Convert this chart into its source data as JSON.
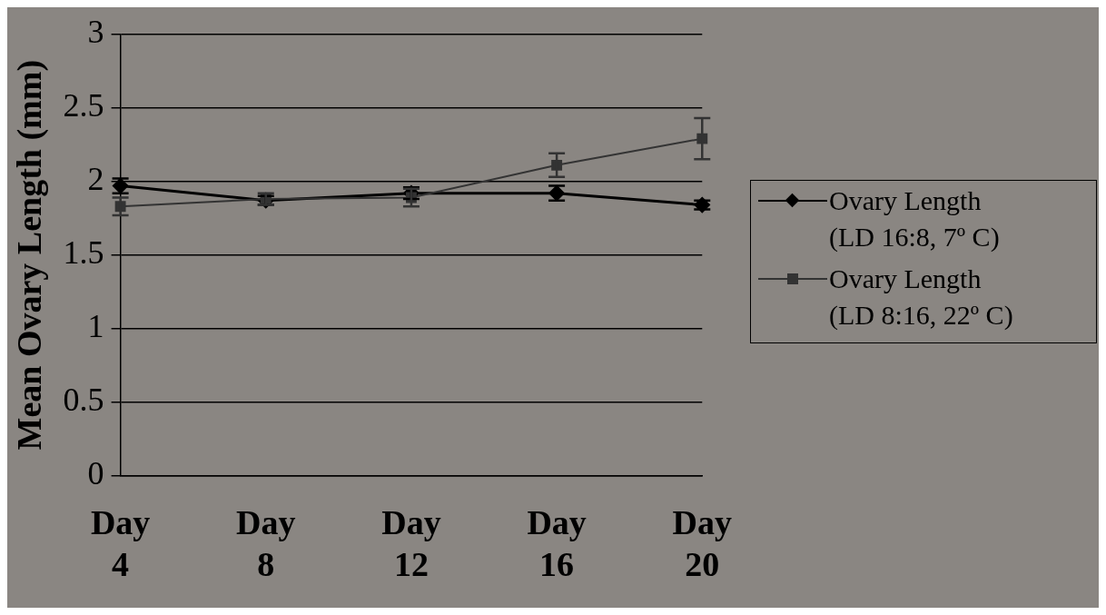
{
  "chart_data": {
    "type": "line",
    "ylabel": "Mean Ovary Length (mm)",
    "categories": [
      "Day 4",
      "Day 8",
      "Day 12",
      "Day 16",
      "Day 20"
    ],
    "series": [
      {
        "name": "Ovary Length (LD 16:8, 7º C)",
        "color": "#000000",
        "marker": "diamond",
        "values": [
          1.97,
          1.87,
          1.92,
          1.92,
          1.84
        ],
        "errors": [
          0.05,
          0.03,
          0.04,
          0.05,
          0.03
        ]
      },
      {
        "name": "Ovary Length (LD 8:16, 22º C)",
        "color": "#333333",
        "marker": "square",
        "values": [
          1.83,
          1.88,
          1.89,
          2.11,
          2.29
        ],
        "errors": [
          0.06,
          0.04,
          0.06,
          0.08,
          0.14
        ]
      }
    ],
    "ylim": [
      0,
      3
    ],
    "yticks": [
      0,
      0.5,
      1,
      1.5,
      2,
      2.5,
      3
    ],
    "grid": "y",
    "legend": "right"
  }
}
